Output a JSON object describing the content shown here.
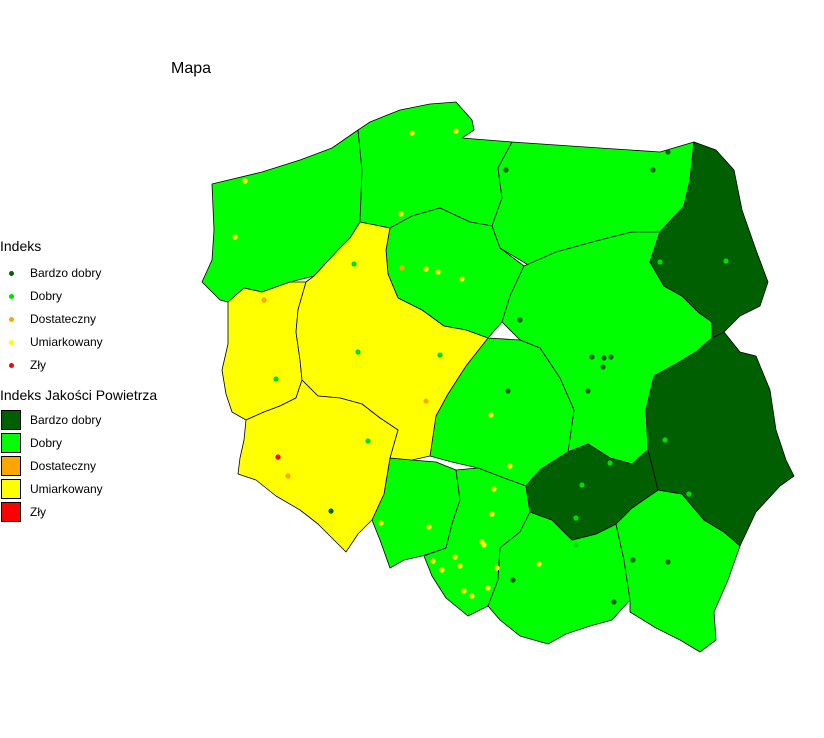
{
  "title": "Mapa",
  "colors": {
    "bardzo_dobry_fill": "#005f00",
    "dobry_fill": "#00ff00",
    "dostateczny_fill": "#ffa500",
    "umiarkowany_fill": "#ffff00",
    "zly_fill": "#ff0000",
    "bardzo_dobry_point": "#006400",
    "dobry_point": "#00dd00",
    "dostateczny_point": "#ffa500",
    "umiarkowany_point": "#ffff00",
    "zly_point": "#ff0000",
    "border": "#000000"
  },
  "legend_points": {
    "title": "Indeks",
    "items": [
      {
        "label": "Bardzo dobry",
        "color": "#006400"
      },
      {
        "label": "Dobry",
        "color": "#00dd00"
      },
      {
        "label": "Dostateczny",
        "color": "#ffa500"
      },
      {
        "label": "Umiarkowany",
        "color": "#ffff00"
      },
      {
        "label": "Zły",
        "color": "#ff0000"
      }
    ]
  },
  "legend_regions": {
    "title": "Indeks Jakości Powietrza",
    "items": [
      {
        "label": "Bardzo dobry",
        "color": "#005f00"
      },
      {
        "label": "Dobry",
        "color": "#00ff00"
      },
      {
        "label": "Dostateczny",
        "color": "#ffa500"
      },
      {
        "label": "Umiarkowany",
        "color": "#ffff00"
      },
      {
        "label": "Zły",
        "color": "#ff0000"
      }
    ]
  }
}
